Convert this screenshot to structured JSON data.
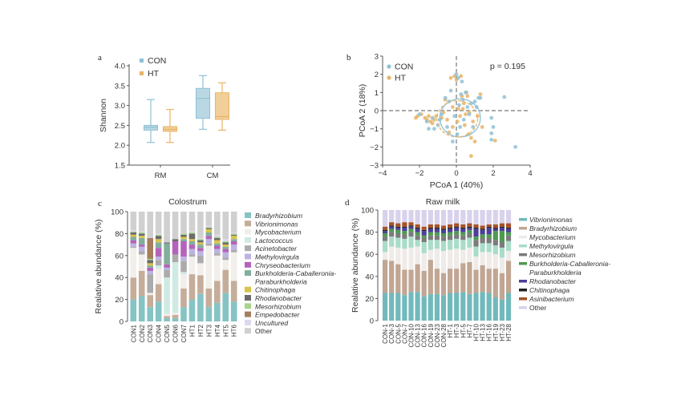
{
  "chart_data": [
    {
      "panel": "a",
      "type": "box",
      "ylabel": "Shannon",
      "ylim": [
        1.5,
        4.0
      ],
      "yticks": [
        "1.5",
        "2.0",
        "2.5",
        "3.0",
        "3.5",
        "4.0"
      ],
      "categories": [
        "RM",
        "CM"
      ],
      "legend_placement": "top-left",
      "series": [
        {
          "name": "CON",
          "color": "#8fc1d6",
          "fill": "#b9d8e4",
          "boxes": [
            {
              "min": 2.07,
              "q1": 2.38,
              "median": 2.45,
              "q3": 2.5,
              "max": 3.15
            },
            {
              "min": 2.4,
              "q1": 2.68,
              "median": 3.18,
              "q3": 3.43,
              "max": 3.75
            }
          ]
        },
        {
          "name": "HT",
          "color": "#e8b468",
          "fill": "#f2cf98",
          "boxes": [
            {
              "min": 2.07,
              "q1": 2.35,
              "median": 2.4,
              "q3": 2.47,
              "max": 2.9
            },
            {
              "min": 2.38,
              "q1": 2.65,
              "median": 2.72,
              "q3": 3.32,
              "max": 3.57
            }
          ]
        }
      ]
    },
    {
      "panel": "b",
      "type": "scatter",
      "xlabel": "PCoA 1 (40%)",
      "ylabel": "PCoA 2 (18%)",
      "xlim": [
        -4,
        4
      ],
      "ylim": [
        -3,
        3
      ],
      "xticks": [
        "−4",
        "−2",
        "0",
        "2",
        "4"
      ],
      "yticks": [
        "−3",
        "−2",
        "−1",
        "0",
        "1",
        "2",
        "3"
      ],
      "annotation": "p = 0.195",
      "legend_placement": "top-left",
      "series": [
        {
          "name": "CON",
          "color": "#8fc1d6",
          "ellipse": {
            "cx": 0.2,
            "cy": -0.4,
            "rx": 1.1,
            "ry": 1.05
          },
          "points": [
            [
              -2,
              -0.2
            ],
            [
              -1.6,
              -0.6
            ],
            [
              -1.5,
              -1
            ],
            [
              -1.3,
              -0.4
            ],
            [
              -1.2,
              -1
            ],
            [
              -1,
              -0.8
            ],
            [
              -0.8,
              -0.2
            ],
            [
              -0.6,
              0.7
            ],
            [
              -0.4,
              0.5
            ],
            [
              -0.3,
              1.1
            ],
            [
              -0.2,
              -1.7
            ],
            [
              -0.1,
              -0.3
            ],
            [
              0,
              2
            ],
            [
              0.1,
              1.8
            ],
            [
              0.15,
              0.3
            ],
            [
              0.2,
              -0.9
            ],
            [
              0.3,
              1.6
            ],
            [
              0.35,
              0.6
            ],
            [
              0.4,
              -0.5
            ],
            [
              0.5,
              1
            ],
            [
              0.6,
              0.2
            ],
            [
              0.7,
              -0.2
            ],
            [
              0.8,
              0.4
            ],
            [
              0.9,
              -0.9
            ],
            [
              1,
              0.5
            ],
            [
              1.2,
              0.7
            ],
            [
              1.3,
              0.7
            ],
            [
              1.9,
              -0.4
            ],
            [
              1.9,
              -1.25
            ],
            [
              1.9,
              -1.6
            ],
            [
              2,
              -0.9
            ],
            [
              2.6,
              0.75
            ],
            [
              3.2,
              -2
            ],
            [
              0.05,
              -1.3
            ],
            [
              -0.5,
              -0.9
            ],
            [
              0.25,
              0.9
            ],
            [
              -0.9,
              -0.5
            ],
            [
              1.1,
              0.2
            ]
          ]
        },
        {
          "name": "HT",
          "color": "#e8b468",
          "ellipse": {
            "cx": 0.05,
            "cy": -0.45,
            "rx": 1.1,
            "ry": 1.0
          },
          "points": [
            [
              -2.2,
              -0.4
            ],
            [
              -2.1,
              -0.3
            ],
            [
              -1.9,
              -0.2
            ],
            [
              -1.7,
              -0.4
            ],
            [
              -1.6,
              -0.5
            ],
            [
              -1.5,
              -0.3
            ],
            [
              -1.4,
              -0.6
            ],
            [
              -1.3,
              -0.7
            ],
            [
              -1.2,
              -0.5
            ],
            [
              -1.1,
              -0.3
            ],
            [
              -0.8,
              -0.4
            ],
            [
              -0.6,
              0.6
            ],
            [
              -0.5,
              -0.5
            ],
            [
              -0.4,
              -1.2
            ],
            [
              -0.3,
              1.8
            ],
            [
              -0.2,
              0.2
            ],
            [
              -0.1,
              1.9
            ],
            [
              0,
              1.7
            ],
            [
              0.05,
              -0.6
            ],
            [
              0.1,
              0.1
            ],
            [
              0.2,
              -0.3
            ],
            [
              0.25,
              1.9
            ],
            [
              0.35,
              0.1
            ],
            [
              0.4,
              0.4
            ],
            [
              0.5,
              -0.2
            ],
            [
              0.6,
              0.8
            ],
            [
              0.65,
              -1.3
            ],
            [
              0.7,
              -0.1
            ],
            [
              0.8,
              -1.5
            ],
            [
              0.9,
              -0.6
            ],
            [
              1,
              -1.7
            ],
            [
              1.15,
              -0.3
            ],
            [
              1.3,
              0.9
            ],
            [
              1.4,
              -0.9
            ],
            [
              2.1,
              -1.65
            ],
            [
              0.8,
              -2.5
            ],
            [
              0.45,
              -0.8
            ],
            [
              -0.7,
              -0.1
            ],
            [
              0.3,
              0.8
            ],
            [
              -0.2,
              -0.9
            ],
            [
              0.55,
              1.0
            ]
          ]
        }
      ]
    },
    {
      "panel": "c",
      "type": "stacked_bar",
      "title": "Colostrum",
      "ylabel": "Realative abundance (%)",
      "ylim": [
        0,
        100
      ],
      "yticks": [
        "0",
        "20",
        "40",
        "60",
        "80",
        "100"
      ],
      "legend_placement": "right",
      "categories": [
        "CON1",
        "CON2",
        "CON3",
        "CON4",
        "CON5",
        "CON6",
        "CON7",
        "HT1",
        "HT2",
        "HT3",
        "HT4",
        "HT5",
        "HT6"
      ],
      "taxa": [
        {
          "name": "Bradyrhizobium",
          "color": "#86c3c4",
          "italic": true
        },
        {
          "name": "Vibrionimonas",
          "color": "#c6ad9a",
          "italic": true
        },
        {
          "name": "Mycobacterium",
          "color": "#f2eeea",
          "italic": true
        },
        {
          "name": "Lactococcus",
          "color": "#cfeae2",
          "italic": true
        },
        {
          "name": "Acinetobacter",
          "color": "#ababab",
          "italic": true
        },
        {
          "name": "Methylovirgula",
          "color": "#bcb3e2",
          "italic": true
        },
        {
          "name": "Chryseobacterium",
          "color": "#b463bb",
          "italic": true
        },
        {
          "name": "Burkholderia-Caballeronia-Paraburkholderia",
          "lines": [
            "Burkholderia-Caballeronia-",
            "Paraburkholderia"
          ],
          "color": "#82ae9c",
          "italic": true
        },
        {
          "name": "Chitinophaga",
          "color": "#d8c44c",
          "italic": true
        },
        {
          "name": "Rhodanobacter",
          "color": "#6b6b6b",
          "italic": true
        },
        {
          "name": "Mesorhizobium",
          "color": "#a9d48c",
          "italic": true
        },
        {
          "name": "Empedobacter",
          "color": "#a57e5e",
          "italic": true
        },
        {
          "name": "Uncultured",
          "color": "#ddd7ef",
          "italic": true
        },
        {
          "name": "Other",
          "color": "#d0d0d0",
          "italic": false
        }
      ],
      "values": [
        [
          20,
          20,
          27,
          0,
          1,
          3,
          3,
          3,
          2,
          2,
          1,
          0,
          1,
          17
        ],
        [
          23,
          23,
          15,
          0,
          3,
          4,
          2,
          6,
          2,
          2,
          1,
          0,
          1,
          18
        ],
        [
          13,
          11,
          2,
          0,
          17,
          3,
          3,
          2,
          2,
          3,
          1,
          19,
          0,
          24
        ],
        [
          18,
          16,
          14,
          3,
          5,
          3,
          8,
          5,
          3,
          3,
          1,
          0,
          1,
          20
        ],
        [
          3,
          2,
          2,
          33,
          7,
          2,
          3,
          19,
          0,
          1,
          0,
          0,
          0,
          28
        ],
        [
          3,
          3,
          2,
          46,
          7,
          0,
          12,
          0,
          0,
          2,
          0,
          0,
          0,
          25
        ],
        [
          13,
          17,
          13,
          2,
          10,
          4,
          14,
          2,
          2,
          2,
          1,
          0,
          0,
          20
        ],
        [
          20,
          23,
          16,
          0,
          2,
          5,
          4,
          3,
          2,
          5,
          1,
          0,
          1,
          18
        ],
        [
          25,
          17,
          11,
          0,
          7,
          4,
          3,
          3,
          2,
          2,
          1,
          0,
          1,
          24
        ],
        [
          13,
          17,
          39,
          0,
          2,
          4,
          3,
          3,
          3,
          1,
          1,
          0,
          1,
          13
        ],
        [
          17,
          20,
          23,
          0,
          2,
          4,
          3,
          2,
          3,
          2,
          1,
          0,
          2,
          21
        ],
        [
          26,
          21,
          9,
          0,
          2,
          5,
          3,
          2,
          2,
          2,
          1,
          0,
          2,
          25
        ],
        [
          18,
          19,
          26,
          0,
          2,
          5,
          3,
          2,
          3,
          1,
          1,
          0,
          1,
          19
        ]
      ]
    },
    {
      "panel": "d",
      "type": "stacked_bar",
      "title": "Raw milk",
      "ylabel": "Realative abundance (%)",
      "ylim": [
        0,
        100
      ],
      "yticks": [
        "0",
        "20",
        "40",
        "60",
        "80",
        "100"
      ],
      "legend_placement": "right",
      "categories": [
        "CON-1",
        "CON-3",
        "CON-5",
        "CON-7",
        "CON-10",
        "CON-13",
        "CON-16",
        "CON-19",
        "CON-23",
        "CON-28",
        "HT-1",
        "HT-3",
        "HT-5",
        "HT-7",
        "HT-10",
        "HT-13",
        "HT-16",
        "HT-19",
        "HT-23",
        "HT-28"
      ],
      "taxa": [
        {
          "name": "Vibrionimonas",
          "color": "#72b9bc",
          "italic": true
        },
        {
          "name": "Bradyrhizobium",
          "color": "#c1a693",
          "italic": true
        },
        {
          "name": "Mycobacterium",
          "color": "#efebe8",
          "italic": true
        },
        {
          "name": "Methylovirgula",
          "color": "#a9dcc9",
          "italic": true
        },
        {
          "name": "Mesorhizobium",
          "color": "#7b7b7b",
          "italic": true
        },
        {
          "name": "Burkholderia-Caballeronia-Paraburkholderia",
          "lines": [
            "Burkholderia-Caballeronia-",
            "Paraburkholderia"
          ],
          "color": "#4f9a52",
          "italic": true
        },
        {
          "name": "Rhodanobacter",
          "color": "#4b3f9a",
          "italic": true
        },
        {
          "name": "Chitinophaga",
          "color": "#222222",
          "italic": true
        },
        {
          "name": "Asinibacterium",
          "color": "#a6532a",
          "italic": true
        },
        {
          "name": "Other",
          "color": "#d9d2ec",
          "italic": false
        }
      ],
      "values": [
        [
          25,
          30,
          7,
          10,
          4,
          3,
          2,
          1,
          3,
          15
        ],
        [
          25,
          29,
          13,
          9,
          4,
          3,
          2,
          1,
          3,
          11
        ],
        [
          25,
          26,
          15,
          9,
          4,
          3,
          2,
          1,
          3,
          12
        ],
        [
          23,
          23,
          19,
          9,
          4,
          3,
          3,
          1,
          4,
          11
        ],
        [
          26,
          20,
          20,
          10,
          4,
          3,
          2,
          1,
          3,
          11
        ],
        [
          26,
          25,
          16,
          6,
          4,
          3,
          3,
          1,
          3,
          13
        ],
        [
          22,
          23,
          16,
          10,
          4,
          2,
          4,
          1,
          3,
          15
        ],
        [
          24,
          31,
          9,
          9,
          4,
          3,
          3,
          1,
          3,
          13
        ],
        [
          24,
          23,
          18,
          8,
          4,
          3,
          3,
          1,
          3,
          13
        ],
        [
          23,
          20,
          20,
          9,
          4,
          3,
          3,
          1,
          3,
          14
        ],
        [
          25,
          22,
          17,
          9,
          4,
          3,
          3,
          1,
          3,
          13
        ],
        [
          25,
          22,
          18,
          9,
          4,
          3,
          3,
          1,
          3,
          12
        ],
        [
          26,
          26,
          12,
          9,
          4,
          3,
          3,
          1,
          3,
          13
        ],
        [
          24,
          29,
          13,
          9,
          4,
          3,
          2,
          1,
          3,
          12
        ],
        [
          25,
          21,
          12,
          9,
          6,
          3,
          7,
          1,
          3,
          13
        ],
        [
          26,
          24,
          12,
          8,
          5,
          3,
          4,
          1,
          3,
          14
        ],
        [
          25,
          22,
          15,
          8,
          5,
          3,
          6,
          1,
          2,
          13
        ],
        [
          21,
          26,
          13,
          8,
          5,
          8,
          2,
          1,
          3,
          13
        ],
        [
          19,
          24,
          14,
          9,
          5,
          10,
          3,
          1,
          3,
          12
        ],
        [
          25,
          29,
          9,
          9,
          5,
          3,
          3,
          1,
          4,
          12
        ]
      ]
    }
  ]
}
